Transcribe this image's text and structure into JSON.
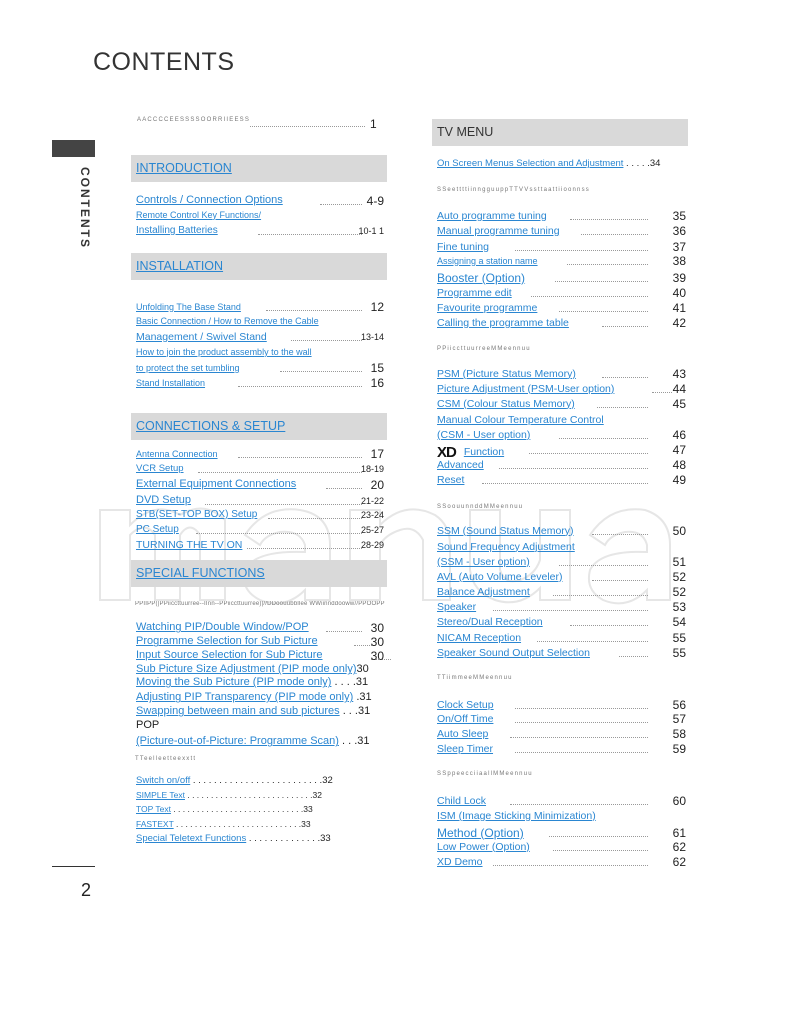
{
  "title": "CONTENTS",
  "side_label": "CONTENTS",
  "page_number": "2",
  "watermark": "manual",
  "accessories": {
    "label": "AACCCCEESSSSOORRIIEESS",
    "page": "1"
  },
  "left": {
    "headers": [
      "INTRODUCTION",
      "INSTALLATION",
      "CONNECTIONS & SETUP",
      "SPECIAL FUNCTIONS"
    ],
    "subheads": [
      "PPIIPP(|PPiiccttuurree--IInn--PPiiccttuurree)|//DDoouubbllee WWiinnddooww//PPOOPP",
      "TTeelleetteexxtt"
    ],
    "entries": [
      {
        "text": "Controls / Connection Options",
        "page": "4-9"
      },
      {
        "text": "Remote Control Key Functions/",
        "page": ""
      },
      {
        "text": "Installing Batteries",
        "page": "10-1 1"
      },
      {
        "text": "Unfolding The Base Stand",
        "page": "12"
      },
      {
        "text": "Basic Connection / How to Remove the Cable",
        "page": ""
      },
      {
        "text": "Management / Swivel Stand",
        "page": "13-14"
      },
      {
        "text": "How to join the product assembly to the wall",
        "page": ""
      },
      {
        "text": "to protect the set tumbling",
        "page": "15"
      },
      {
        "text": "Stand Installation",
        "page": "16"
      },
      {
        "text": "Antenna Connection",
        "page": "17"
      },
      {
        "text": "VCR Setup",
        "page": "18-19"
      },
      {
        "text": "External Equipment Connections",
        "page": "20"
      },
      {
        "text": "DVD Setup",
        "page": "21-22"
      },
      {
        "text": "STB(SET-TOP BOX) Setup",
        "page": "23-24"
      },
      {
        "text": "PC Setup",
        "page": "25-27"
      },
      {
        "text": "TURNING THE TV ON",
        "page": "28-29"
      },
      {
        "text": "Watching PIP/Double Window/POP",
        "page": "30"
      },
      {
        "text": "Programme Selection for Sub Picture",
        "page": "30"
      },
      {
        "text": "Input Source Selection for Sub Picture",
        "page": "30"
      },
      {
        "text": "Sub Picture Size Adjustment (PIP mode only)",
        "page": "30"
      },
      {
        "text": "Moving the Sub Picture (PIP mode only)",
        "page": " . . . .31"
      },
      {
        "text": "Adjusting PIP Transparency (PIP mode only)",
        "page": " .31"
      },
      {
        "text": "Swapping between main and sub pictures",
        "page": " . . .31"
      },
      {
        "text": "POP",
        "page": ""
      },
      {
        "text": "(Picture-out-of-Picture: Programme Scan)",
        "page": " . . .31"
      },
      {
        "text": "Switch on/off",
        "page": " . . . . . . . . . . . . . . . . . . . . . . . . .32"
      },
      {
        "text": "SIMPLE Text",
        "page": " . . . . . . . . . . . . . . . . . . . . . . . . . . .32"
      },
      {
        "text": "TOP Text",
        "page": " . . . . . . . . . . . . . . . . . . . . . . . . . . . .33"
      },
      {
        "text": "FASTEXT",
        "page": " . . . . . . . . . . . . . . . . . . . . . . . . . . .33"
      },
      {
        "text": "Special Teletext Functions",
        "page": " . . . . . . . . . . . . . .33"
      }
    ]
  },
  "right": {
    "headers": [
      "TV MENU"
    ],
    "subheads": [
      "SSeettttiinngguuppTTVVssttaattiioonnss",
      "PPiiccttuurreeMMeennuu",
      "SSoouunnddMMeennuu",
      "TTiimmeeMMeennuu",
      "SSppeecciiaallMMeennuu"
    ],
    "entries": [
      {
        "text": "On Screen Menus Selection and Adjustment",
        "page": " . . . . .34"
      },
      {
        "text": "Auto programme tuning",
        "page": "35"
      },
      {
        "text": "Manual programme tuning",
        "page": "36"
      },
      {
        "text": "Fine tuning",
        "page": "37"
      },
      {
        "text": "Assigning a station name",
        "page": "38"
      },
      {
        "text": "Booster (Option)",
        "page": "39"
      },
      {
        "text": "Programme edit",
        "page": "40"
      },
      {
        "text": "Favourite programme",
        "page": "41"
      },
      {
        "text": "Calling the programme table",
        "page": "42"
      },
      {
        "text": "PSM (Picture Status Memory)",
        "page": "43"
      },
      {
        "text": "Picture Adjustment (PSM-User option)",
        "page": "44"
      },
      {
        "text": "CSM (Colour Status Memory)",
        "page": "45"
      },
      {
        "text": "Manual Colour Temperature Control",
        "page": ""
      },
      {
        "text": "(CSM - User option)",
        "page": "46"
      },
      {
        "text": "Function",
        "page": "47",
        "logo": "XD"
      },
      {
        "text": "Advanced",
        "page": "48"
      },
      {
        "text": "Reset",
        "page": "49"
      },
      {
        "text": "SSM (Sound Status Memory)",
        "page": "50"
      },
      {
        "text": "Sound Frequency Adjustment",
        "page": ""
      },
      {
        "text": "(SSM - User option)",
        "page": "51"
      },
      {
        "text": "AVL (Auto Volume Leveler)",
        "page": "52"
      },
      {
        "text": "Balance Adjustment",
        "page": "52"
      },
      {
        "text": "Speaker",
        "page": "53"
      },
      {
        "text": "Stereo/Dual Reception",
        "page": "54"
      },
      {
        "text": "NICAM Reception",
        "page": "55"
      },
      {
        "text": "Speaker Sound Output Selection",
        "page": "55"
      },
      {
        "text": "Clock Setup",
        "page": "56"
      },
      {
        "text": "On/Off Time",
        "page": "57"
      },
      {
        "text": "Auto Sleep",
        "page": "58"
      },
      {
        "text": "Sleep Timer",
        "page": "59"
      },
      {
        "text": "Child Lock",
        "page": "60"
      },
      {
        "text": "ISM (Image Sticking Minimization)",
        "page": ""
      },
      {
        "text": "Method (Option)",
        "page": "61"
      },
      {
        "text": "Low Power (Option)",
        "page": "62"
      },
      {
        "text": "XD Demo",
        "page": "62"
      }
    ]
  }
}
